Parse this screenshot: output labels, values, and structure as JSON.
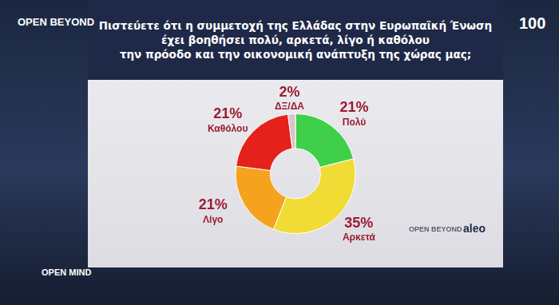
{
  "chart_data": {
    "type": "doughnut",
    "title": [
      "Πιστεύετε ότι η συμμετοχή της Ελλάδας στην Ευρωπαϊκή Ένωση",
      "έχει βοηθήσει πολύ, αρκετά, λίγο ή καθόλου",
      "την πρόοδο και την οικονομική ανάπτυξη της χώρας μας;"
    ],
    "categories": [
      "Πολύ",
      "Αρκετά",
      "Λίγο",
      "Καθόλου",
      "ΔΞ/ΔΑ"
    ],
    "values": [
      21,
      35,
      21,
      21,
      2
    ],
    "value_labels": [
      "21%",
      "35%",
      "21%",
      "21%",
      "2%"
    ],
    "colors": [
      "#3fcf4a",
      "#f0dc35",
      "#f5a21f",
      "#e5211c",
      "#d8c4c8"
    ],
    "data_labels": true,
    "annotations": [
      "OPEN BEYOND",
      "100",
      "OPEN MIND",
      "OPEN BEYOND",
      "aleo"
    ]
  }
}
